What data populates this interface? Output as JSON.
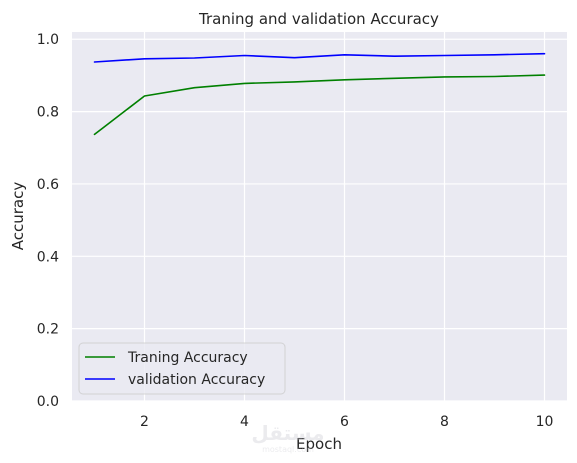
{
  "chart_data": {
    "type": "line",
    "title": "Traning and validation Accuracy",
    "xlabel": "Epoch",
    "ylabel": "Accuracy",
    "xlim": [
      0.55,
      10.45
    ],
    "ylim": [
      0.0,
      1.02
    ],
    "xticks": [
      2,
      4,
      6,
      8,
      10
    ],
    "yticks": [
      0.0,
      0.2,
      0.4,
      0.6,
      0.8,
      1.0
    ],
    "ytick_labels": [
      "0.0",
      "0.2",
      "0.4",
      "0.6",
      "0.8",
      "1.0"
    ],
    "grid": true,
    "legend_position": "lower-left",
    "x": [
      1,
      2,
      3,
      4,
      5,
      6,
      7,
      8,
      9,
      10
    ],
    "series": [
      {
        "name": "Traning Accuracy",
        "color": "#008000",
        "values": [
          0.737,
          0.843,
          0.866,
          0.878,
          0.882,
          0.888,
          0.892,
          0.896,
          0.897,
          0.901
        ]
      },
      {
        "name": "validation Accuracy",
        "color": "#0000ff",
        "values": [
          0.937,
          0.946,
          0.948,
          0.955,
          0.949,
          0.957,
          0.953,
          0.955,
          0.957,
          0.96
        ]
      }
    ]
  },
  "watermark": {
    "arabic": "مستقل",
    "latin": "mostaql.com"
  }
}
